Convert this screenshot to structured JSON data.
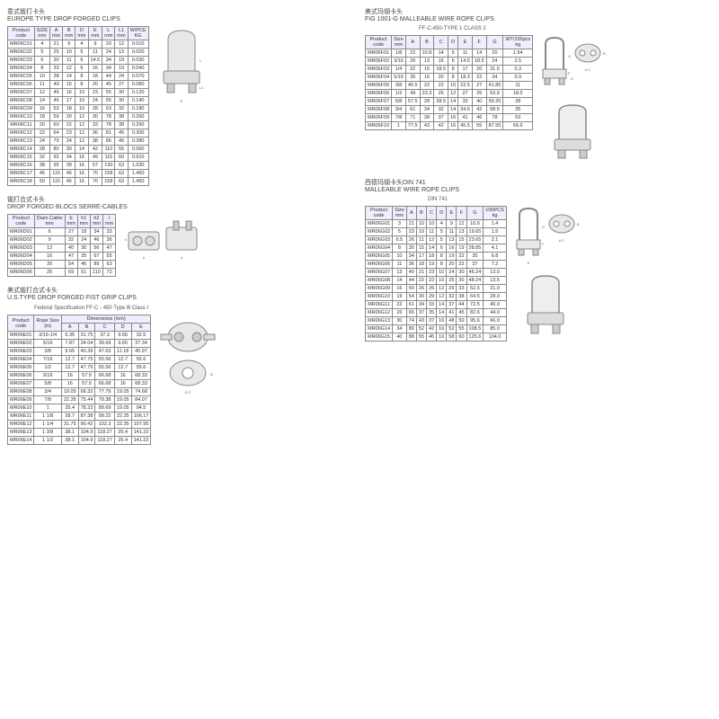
{
  "section1": {
    "cn": "意式锻打卡头",
    "en": "EUROPE TYPE DROP FORGED CLIPS",
    "headers": [
      "Product\ncode",
      "SIZE\nmm",
      "A\nmm",
      "B\nmm",
      "D\nmm",
      "E\nmm",
      "L\nmm",
      "L1\nmm",
      "W/PCE\nKG"
    ],
    "rows": [
      [
        "MR06C01",
        "4",
        "21",
        "9",
        "4",
        "9",
        "20",
        "12",
        "0.010"
      ],
      [
        "MR06C02",
        "5",
        "25",
        "10",
        "5",
        "11",
        "24",
        "13",
        "0.020"
      ],
      [
        "MR06C03",
        "6",
        "30",
        "11",
        "6",
        "14.5",
        "34",
        "19",
        "0.030"
      ],
      [
        "MR06C04",
        "8",
        "33",
        "12",
        "6",
        "16",
        "34",
        "19",
        "0.040"
      ],
      [
        "MR06C05",
        "10",
        "38",
        "14",
        "8",
        "18",
        "44",
        "24",
        "0.070"
      ],
      [
        "MR06C06",
        "11",
        "40",
        "15",
        "8",
        "20",
        "45",
        "27",
        "0.080"
      ],
      [
        "MR06C07",
        "12",
        "45",
        "16",
        "10",
        "23",
        "55",
        "30",
        "0.120"
      ],
      [
        "MR06C08",
        "14",
        "46",
        "17",
        "10",
        "24",
        "55",
        "30",
        "0.140"
      ],
      [
        "MR06C09",
        "16",
        "53",
        "18",
        "10",
        "28",
        "63",
        "32",
        "0.180"
      ],
      [
        "MR06C10",
        "18",
        "59",
        "20",
        "12",
        "30",
        "78",
        "38",
        "0.260"
      ],
      [
        "MR06C11",
        "20",
        "60",
        "22",
        "12",
        "33",
        "78",
        "38",
        "0.290"
      ],
      [
        "MR06C12",
        "22",
        "64",
        "23",
        "12",
        "36",
        "81",
        "45",
        "0.300"
      ],
      [
        "MR06C13",
        "24",
        "70",
        "24",
        "12",
        "38",
        "86",
        "45",
        "0.380"
      ],
      [
        "MR06C14",
        "28",
        "80",
        "30",
        "14",
        "42",
        "110",
        "55",
        "0.560"
      ],
      [
        "MR06C15",
        "32",
        "92",
        "34",
        "16",
        "49",
        "115",
        "60",
        "0.910"
      ],
      [
        "MR06C16",
        "38",
        "95",
        "39",
        "16",
        "57",
        "130",
        "63",
        "1.030"
      ],
      [
        "MR06C17",
        "45",
        "115",
        "46",
        "16",
        "70",
        "158",
        "63",
        "1.450"
      ],
      [
        "MR06C18",
        "50",
        "115",
        "46",
        "16",
        "70",
        "158",
        "63",
        "1.450"
      ]
    ]
  },
  "section2": {
    "cn": "锻打合式卡头",
    "en": "DROP FORGED BLOCS SERRE-CABLES",
    "headers": [
      "Product\ncode",
      "Diam Cable\nmm",
      "b\nmm",
      "h1\nmm",
      "h2\nmm",
      "l\nmm"
    ],
    "rows": [
      [
        "MR06D01",
        "6",
        "27",
        "18",
        "34",
        "33"
      ],
      [
        "MR06D02",
        "9",
        "32",
        "24",
        "46",
        "36"
      ],
      [
        "MR06D03",
        "12",
        "40",
        "30",
        "56",
        "47"
      ],
      [
        "MR06D04",
        "16",
        "47",
        "35",
        "67",
        "55"
      ],
      [
        "MR06D05",
        "20",
        "54",
        "46",
        "89",
        "63"
      ],
      [
        "MR06D06",
        "25",
        "69",
        "51",
        "110",
        "72"
      ]
    ]
  },
  "section3": {
    "cn": "美式锻打合式卡头",
    "en": "U.S.TYPE DROP FORGED FIST GRIP CLIPS",
    "spec": "Federal Specification FF-C - 450 Type Ⅲ Class Ⅰ",
    "topHeaders": [
      "Product\ncode",
      "Rope Size\n(in)",
      "Dimensions (mm)"
    ],
    "subHeaders": [
      "A",
      "B",
      "C",
      "D",
      "E"
    ],
    "rows": [
      [
        "MR06E01",
        "3/16-1/4",
        "6.35",
        "31.75",
        "37.3",
        "9.65",
        "32.5"
      ],
      [
        "MR06E02",
        "5/16",
        "7.87",
        "34.04",
        "39.69",
        "9.65",
        "37.34"
      ],
      [
        "MR06E03",
        "3/8",
        "9.65",
        "40.39",
        "47.63",
        "11.18",
        "45.97"
      ],
      [
        "MR06E04",
        "7/16",
        "12.7",
        "47.75",
        "55.56",
        "12.7",
        "55.6"
      ],
      [
        "MR06E05",
        "1/2",
        "12.7",
        "47.75",
        "55.56",
        "12.7",
        "55.6"
      ],
      [
        "MR06E06",
        "9/16",
        "16",
        "57.9",
        "66.68",
        "16",
        "68.33"
      ],
      [
        "MR06E07",
        "5/8",
        "16",
        "57.9",
        "66.68",
        "16",
        "68.33"
      ],
      [
        "MR06E08",
        "3/4",
        "19.05",
        "68.33",
        "77.79",
        "19.05",
        "74.68"
      ],
      [
        "MR06E09",
        "7/8",
        "22.35",
        "75.44",
        "79.38",
        "19.05",
        "84.07"
      ],
      [
        "MR06E10",
        "1",
        "25.4",
        "78.23",
        "89.69",
        "19.05",
        "94.5"
      ],
      [
        "MR06E11",
        "1 1/8",
        "28.7",
        "87.38",
        "99.22",
        "22.35",
        "106.17"
      ],
      [
        "MR06E12",
        "1 1/4",
        "31.75",
        "90.42",
        "102.3",
        "22.35",
        "107.95"
      ],
      [
        "MR06E13",
        "1 3/8",
        "38.1",
        "104.9",
        "118.27",
        "25.4",
        "141.22"
      ],
      [
        "MR06E14",
        "1 1/2",
        "38.1",
        "104.9",
        "118.27",
        "25.4",
        "141.22"
      ]
    ]
  },
  "section4": {
    "cn": "美式玛钢卡头",
    "en": "FIG 1001-G MALLEABLE WIRE ROPE CLIPS",
    "spec": "FF-C-450-TYPE 1 CLASS 2",
    "headers": [
      "Product\ncode",
      "Size\nmm",
      "A",
      "B",
      "C",
      "D",
      "E",
      "F",
      "G",
      "WT/100pcs\nkg"
    ],
    "rows": [
      [
        "MR06F01",
        "1/8",
        "22",
        "10.8",
        "14",
        "5",
        "11",
        "14",
        "20",
        "1.54"
      ],
      [
        "MR06F02",
        "3/16",
        "26",
        "13",
        "15",
        "6",
        "14.5",
        "18.5",
        "24",
        "2.5"
      ],
      [
        "MR06F03",
        "1/4",
        "32",
        "15",
        "18.5",
        "8",
        "17",
        "20",
        "31.5",
        "5.3"
      ],
      [
        "MR06F04",
        "5/16",
        "35",
        "16",
        "20",
        "8",
        "18.3",
        "22",
        "34",
        "5.9"
      ],
      [
        "MR06F05",
        "3/8",
        "40.5",
        "22",
        "22",
        "10",
        "22.5",
        "27",
        "41.85",
        "11"
      ],
      [
        "MR06F06",
        "1/2",
        "49",
        "23.3",
        "26",
        "12",
        "27",
        "35",
        "53.9",
        "18.5"
      ],
      [
        "MR06F07",
        "5/8",
        "57.5",
        "28",
        "28.5",
        "14",
        "33",
        "40",
        "59.25",
        "28"
      ],
      [
        "MR06F08",
        "3/4",
        "61",
        "34",
        "32",
        "14",
        "34.5",
        "42",
        "68.5",
        "35"
      ],
      [
        "MR06F09",
        "7/8",
        "71",
        "38",
        "37",
        "16",
        "41",
        "46",
        "78",
        "53"
      ],
      [
        "MR06F10",
        "1",
        "77.5",
        "43",
        "42",
        "16",
        "45.5",
        "55",
        "87.55",
        "66.6"
      ]
    ]
  },
  "section5": {
    "cn": "西德玛钢卡头DIN 741",
    "en": "MALLEABLE WIRE ROPE CLIPS",
    "spec": "DIN 741",
    "headers": [
      "Product\ncode",
      "Size\nmm",
      "A",
      "B",
      "C",
      "D",
      "E",
      "F",
      "G",
      "100PCS\nkg"
    ],
    "rows": [
      [
        "MR06G01",
        "3",
        "21",
        "10",
        "10",
        "4",
        "9",
        "12",
        "16.6",
        "1.4"
      ],
      [
        "MR06G02",
        "5",
        "23",
        "10",
        "11",
        "5",
        "11",
        "13",
        "19.65",
        "1.5"
      ],
      [
        "MR06G03",
        "6.5",
        "26",
        "11",
        "12",
        "5",
        "13",
        "15",
        "23.65",
        "2.1"
      ],
      [
        "MR06G04",
        "8",
        "30",
        "15",
        "14",
        "6",
        "16",
        "19",
        "28.85",
        "4.1"
      ],
      [
        "MR06G05",
        "10",
        "34",
        "17",
        "18",
        "8",
        "19",
        "22",
        "35",
        "6.8"
      ],
      [
        "MR06G06",
        "11",
        "36",
        "18",
        "19",
        "8",
        "20",
        "22",
        "37",
        "7.2"
      ],
      [
        "MR06G07",
        "13",
        "40",
        "21",
        "23",
        "10",
        "24",
        "30",
        "46.24",
        "13.0"
      ],
      [
        "MR06G08",
        "14",
        "44",
        "22",
        "23",
        "10",
        "25",
        "30",
        "48.24",
        "13.5"
      ],
      [
        "MR06G09",
        "16",
        "50",
        "26",
        "26",
        "12",
        "29",
        "33",
        "52.5",
        "21.0"
      ],
      [
        "MR06G10",
        "19",
        "54",
        "30",
        "29",
        "12",
        "32",
        "38",
        "64.5",
        "28.0"
      ],
      [
        "MR06G11",
        "22",
        "61",
        "34",
        "33",
        "14",
        "37",
        "44",
        "72.5",
        "40.0"
      ],
      [
        "MR06G12",
        "26",
        "65",
        "37",
        "35",
        "14",
        "41",
        "45",
        "82.6",
        "44.0"
      ],
      [
        "MR06G13",
        "30",
        "74",
        "43",
        "37",
        "16",
        "48",
        "50",
        "95.6",
        "66.0"
      ],
      [
        "MR06G14",
        "34",
        "80",
        "52",
        "42",
        "16",
        "52",
        "55",
        "108.5",
        "85.0"
      ],
      [
        "MR06G15",
        "40",
        "88",
        "55",
        "45",
        "16",
        "58",
        "60",
        "125.6",
        "104.0"
      ]
    ]
  }
}
